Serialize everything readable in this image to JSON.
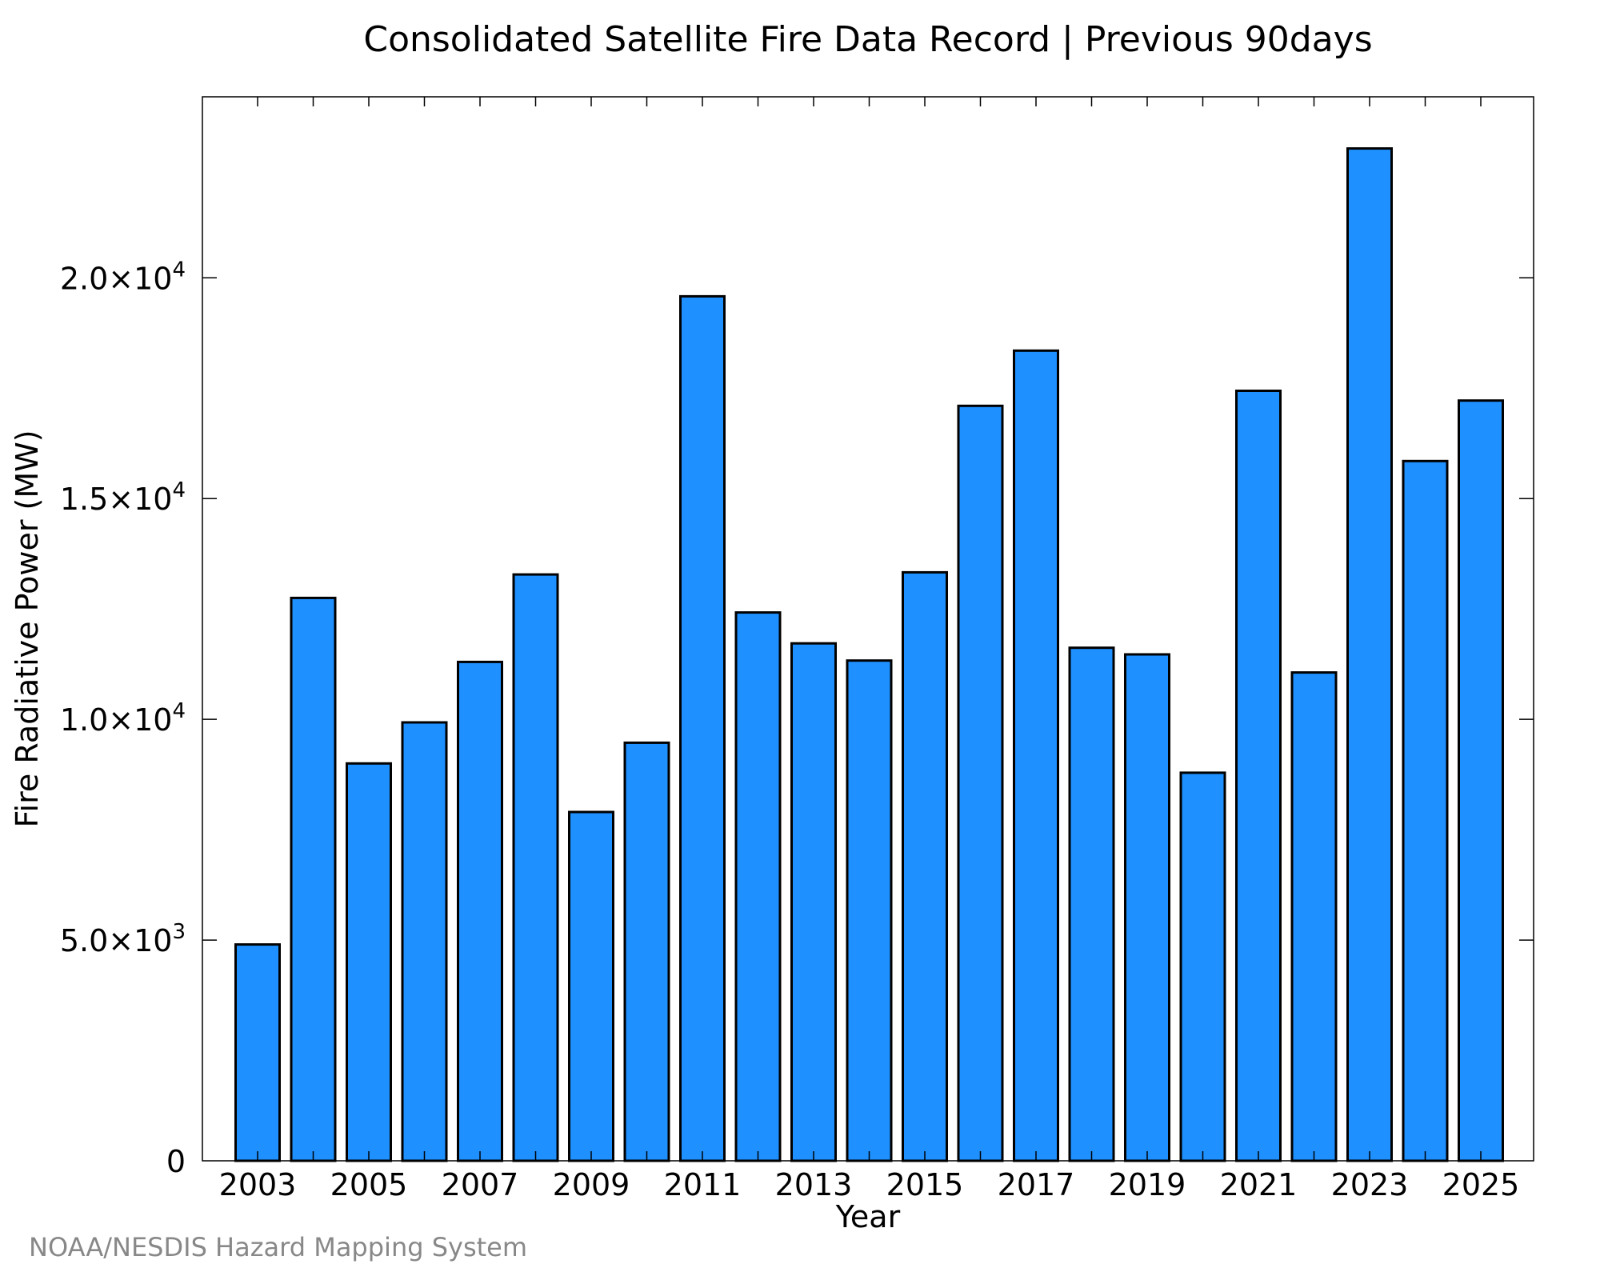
{
  "chart_data": {
    "type": "bar",
    "title": "Consolidated Satellite Fire Data Record | Previous 90days",
    "xlabel": "Year",
    "ylabel": "Fire Radiative Power (MW)",
    "categories": [
      "2003",
      "2004",
      "2005",
      "2006",
      "2007",
      "2008",
      "2009",
      "2010",
      "2011",
      "2012",
      "2013",
      "2014",
      "2015",
      "2016",
      "2017",
      "2018",
      "2019",
      "2020",
      "2021",
      "2022",
      "2023",
      "2024",
      "2025"
    ],
    "values": [
      4900,
      12750,
      9000,
      9930,
      11300,
      13280,
      7900,
      9470,
      19580,
      12420,
      11720,
      11330,
      13330,
      17100,
      18350,
      11620,
      11470,
      8790,
      17440,
      11060,
      22930,
      15850,
      17220
    ],
    "ylim": [
      0,
      24100
    ],
    "yticks": [
      {
        "value": 0,
        "mantissa": "0",
        "exponent": ""
      },
      {
        "value": 5000,
        "mantissa": "5.0×10",
        "exponent": "3"
      },
      {
        "value": 10000,
        "mantissa": "1.0×10",
        "exponent": "4"
      },
      {
        "value": 15000,
        "mantissa": "1.5×10",
        "exponent": "4"
      },
      {
        "value": 20000,
        "mantissa": "2.0×10",
        "exponent": "4"
      }
    ],
    "xtick_labels": [
      "2003",
      "2005",
      "2007",
      "2009",
      "2011",
      "2013",
      "2015",
      "2017",
      "2019",
      "2021",
      "2023",
      "2025"
    ],
    "bar_color": "#1e90ff",
    "edge_color": "#000000",
    "grid": false
  },
  "footer": "NOAA/NESDIS Hazard Mapping System"
}
